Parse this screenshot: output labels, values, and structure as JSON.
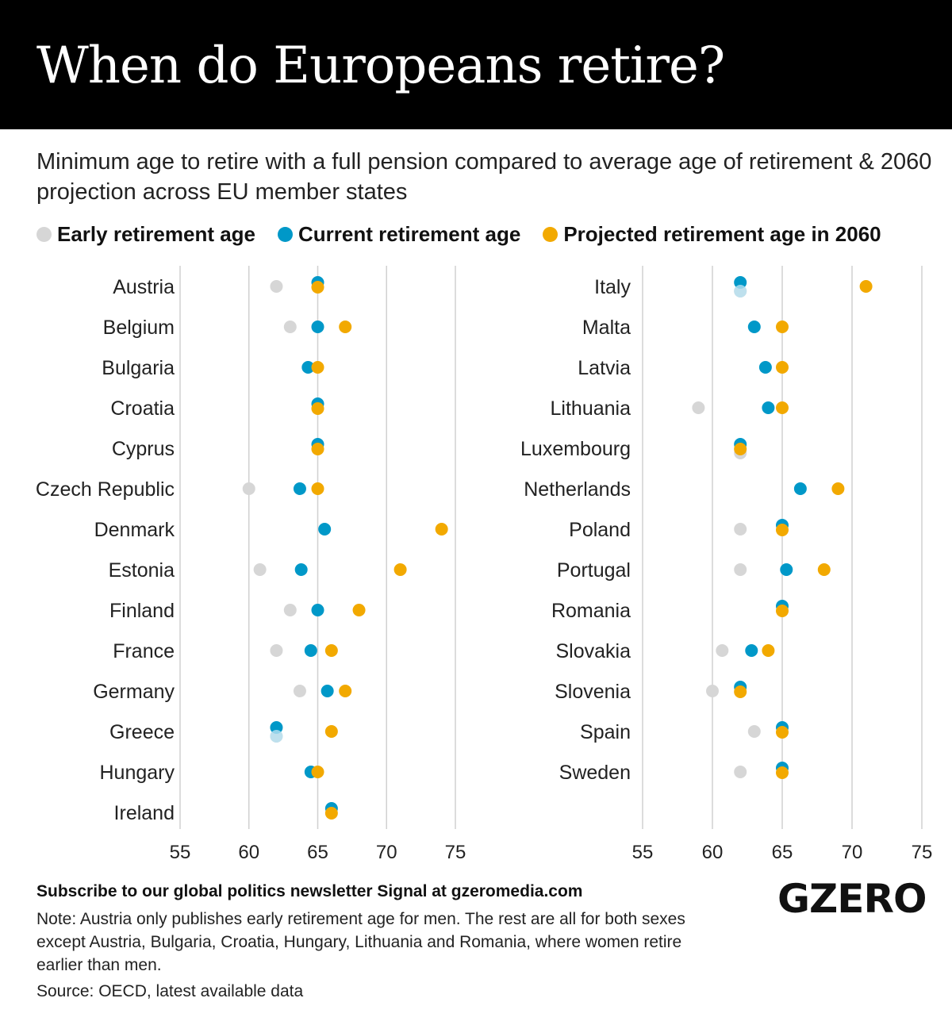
{
  "header": {
    "title": "When do Europeans retire?"
  },
  "subtitle": "Minimum age to retire with a full pension compared to average age of retirement & 2060 projection across EU member states",
  "colors": {
    "early": "#d6d6d6",
    "current": "#0098c8",
    "projected": "#f2a900",
    "grid": "#d0d0d0"
  },
  "chart_data": [
    {
      "type": "scatter",
      "xlim": [
        55,
        75
      ],
      "xticks": [
        55,
        60,
        65,
        70,
        75
      ],
      "legend": [
        {
          "key": "early",
          "label": "Early retirement age"
        },
        {
          "key": "current",
          "label": "Current retirement age"
        },
        {
          "key": "projected",
          "label": "Projected retirement age in 2060"
        }
      ],
      "categories": [
        "Austria",
        "Belgium",
        "Bulgaria",
        "Croatia",
        "Cyprus",
        "Czech Republic",
        "Denmark",
        "Estonia",
        "Finland",
        "France",
        "Germany",
        "Greece",
        "Hungary",
        "Ireland"
      ],
      "series": [
        {
          "name": "early",
          "values": [
            62,
            63,
            null,
            null,
            null,
            60,
            null,
            60.8,
            63,
            62,
            63.7,
            62,
            null,
            null
          ]
        },
        {
          "name": "current",
          "values": [
            65,
            65,
            64.3,
            65,
            65,
            63.7,
            65.5,
            63.8,
            65,
            64.5,
            65.7,
            62,
            64.5,
            66
          ]
        },
        {
          "name": "projected",
          "values": [
            65,
            67,
            65,
            65,
            65,
            65,
            74,
            71,
            68,
            66,
            67,
            66,
            65,
            66
          ]
        }
      ]
    },
    {
      "type": "scatter",
      "xlim": [
        55,
        75
      ],
      "xticks": [
        55,
        60,
        65,
        70,
        75
      ],
      "categories": [
        "Italy",
        "Malta",
        "Latvia",
        "Lithuania",
        "Luxembourg",
        "Netherlands",
        "Poland",
        "Portugal",
        "Romania",
        "Slovakia",
        "Slovenia",
        "Spain",
        "Sweden"
      ],
      "series": [
        {
          "name": "early",
          "values": [
            62,
            null,
            null,
            59,
            62,
            null,
            62,
            62,
            null,
            60.7,
            60,
            63,
            62
          ]
        },
        {
          "name": "current",
          "values": [
            62,
            63,
            63.8,
            64,
            62,
            66.3,
            65,
            65.3,
            65,
            62.8,
            62,
            65,
            65
          ]
        },
        {
          "name": "projected",
          "values": [
            71,
            65,
            65,
            65,
            62,
            69,
            65,
            68,
            65,
            64,
            62,
            65,
            65
          ]
        }
      ]
    }
  ],
  "footer": {
    "subscribe": "Subscribe to our global politics newsletter Signal at gzeromedia.com",
    "note": "Note: Austria only publishes early retirement age for men. The rest are all for both sexes except Austria, Bulgaria, Croatia, Hungary, Lithuania and Romania, where women retire earlier than men.",
    "source": "Source: OECD, latest available data",
    "logo": "GZERO"
  }
}
